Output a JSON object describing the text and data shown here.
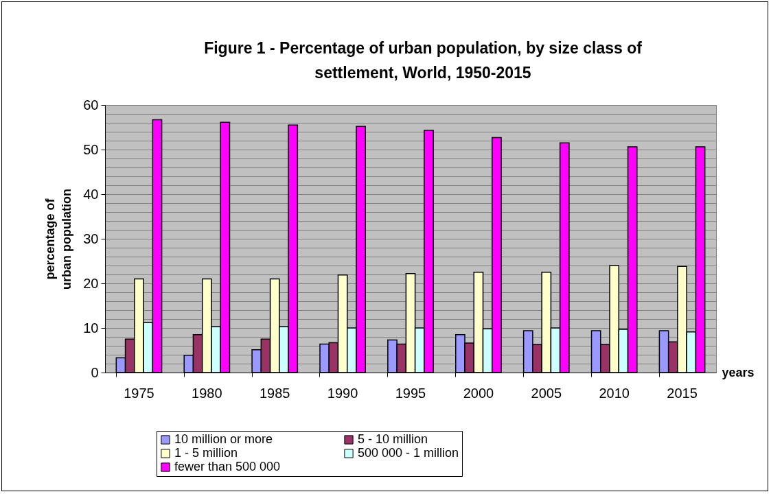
{
  "chart_data": {
    "type": "bar",
    "title": "Figure 1 - Percentage of urban population, by size class of settlement, World, 1950-2015",
    "xlabel": "years",
    "ylabel": "percentage of urban population",
    "categories": [
      "1975",
      "1980",
      "1985",
      "1990",
      "1995",
      "2000",
      "2005",
      "2010",
      "2015"
    ],
    "series": [
      {
        "name": "10 million or more",
        "color": "#9999ff",
        "values": [
          3.3,
          3.9,
          5.1,
          6.4,
          7.3,
          8.5,
          9.4,
          9.4,
          9.4
        ]
      },
      {
        "name": "5 - 10 million",
        "color": "#993366",
        "values": [
          7.5,
          8.5,
          7.5,
          6.7,
          6.4,
          6.6,
          6.3,
          6.3,
          6.9
        ]
      },
      {
        "name": "1 - 5 million",
        "color": "#ffffcc",
        "values": [
          21,
          21,
          21,
          21.9,
          22.2,
          22.5,
          22.5,
          24,
          23.8
        ]
      },
      {
        "name": "500 000 - 1 million",
        "color": "#ccffff",
        "values": [
          11.2,
          10.3,
          10.3,
          10,
          10,
          9.8,
          10,
          9.7,
          9.1
        ]
      },
      {
        "name": "fewer than 500 000",
        "color": "#ff00ff",
        "values": [
          56.7,
          56.1,
          55.5,
          55.2,
          54.3,
          52.7,
          51.5,
          50.6,
          50.6
        ]
      }
    ],
    "ylim": [
      0,
      60
    ],
    "yticks": [
      0,
      {
        "value": 2,
        "label": null
      },
      {
        "value": 4,
        "label": null
      },
      {
        "value": 6,
        "label": null
      },
      {
        "value": 8,
        "label": null
      },
      10,
      {
        "value": 12,
        "label": null
      },
      {
        "value": 14,
        "label": null
      },
      {
        "value": 16,
        "label": null
      },
      {
        "value": 18,
        "label": null
      },
      20,
      {
        "value": 22,
        "label": null
      },
      {
        "value": 24,
        "label": null
      },
      {
        "value": 26,
        "label": null
      },
      {
        "value": 28,
        "label": null
      },
      30,
      {
        "value": 32,
        "label": null
      },
      {
        "value": 34,
        "label": null
      },
      {
        "value": 36,
        "label": null
      },
      {
        "value": 38,
        "label": null
      },
      40,
      {
        "value": 42,
        "label": null
      },
      {
        "value": 44,
        "label": null
      },
      {
        "value": 46,
        "label": null
      },
      {
        "value": 48,
        "label": null
      },
      50,
      {
        "value": 52,
        "label": null
      },
      {
        "value": 54,
        "label": null
      },
      {
        "value": 56,
        "label": null
      },
      {
        "value": 58,
        "label": null
      },
      60
    ],
    "grid": "y",
    "legend": "bottom"
  }
}
